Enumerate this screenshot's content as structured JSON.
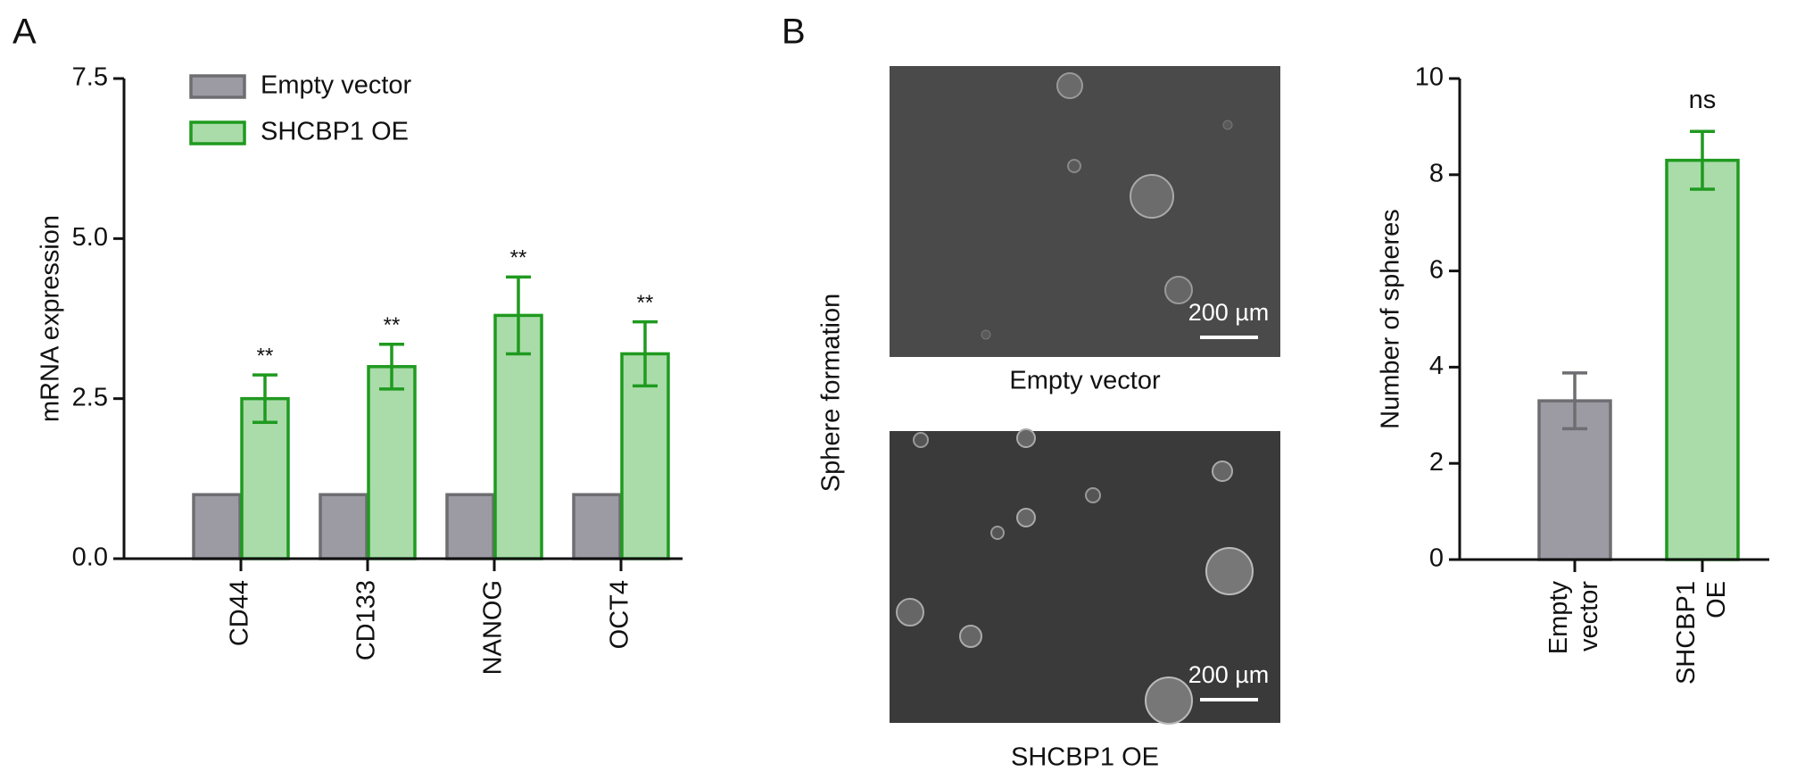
{
  "panels": [
    "A",
    "B"
  ],
  "micrographs": {
    "label": "Sphere formation",
    "images": [
      {
        "caption": "Empty vector",
        "scale_bar": "200 µm"
      },
      {
        "caption": "SHCBP1 OE",
        "scale_bar": "200 µm"
      }
    ]
  },
  "chart_data": [
    {
      "type": "bar",
      "ylabel": "mRNA expression",
      "categories": [
        "CD44",
        "CD133",
        "NANOG",
        "OCT4"
      ],
      "series": [
        {
          "name": "Empty vector",
          "color": "#9c9aa2",
          "edge": "#6e6e72",
          "values": [
            1,
            1,
            1,
            1
          ]
        },
        {
          "name": "SHCBP1 OE",
          "color": "#a9dca9",
          "edge": "#1f9a1f",
          "values": [
            2.5,
            3.0,
            3.8,
            3.2
          ],
          "errors": [
            0.37,
            0.35,
            0.6,
            0.5
          ],
          "annotations": [
            "**",
            "**",
            "**",
            "**"
          ]
        }
      ],
      "ylim": [
        0,
        7.5
      ],
      "yticks": [
        {
          "value": 0,
          "label": "0.0"
        },
        2.5,
        {
          "value": 5,
          "label": "5.0"
        },
        7.5
      ],
      "grid": false,
      "legend": "top-left"
    },
    {
      "type": "bar",
      "ylabel": "Number of spheres",
      "categories": [
        "Empty vector",
        "SHCBP1 OE"
      ],
      "values": [
        3.3,
        8.3
      ],
      "errors": [
        0.58,
        0.6
      ],
      "colors": [
        "#9c9aa2",
        "#a9dca9"
      ],
      "edges": [
        "#6e6e72",
        "#1f9a1f"
      ],
      "annotations": [
        null,
        "ns"
      ],
      "ylim": [
        0,
        10
      ],
      "yticks": [
        0,
        2,
        4,
        6,
        8,
        10
      ],
      "grid": false
    }
  ]
}
